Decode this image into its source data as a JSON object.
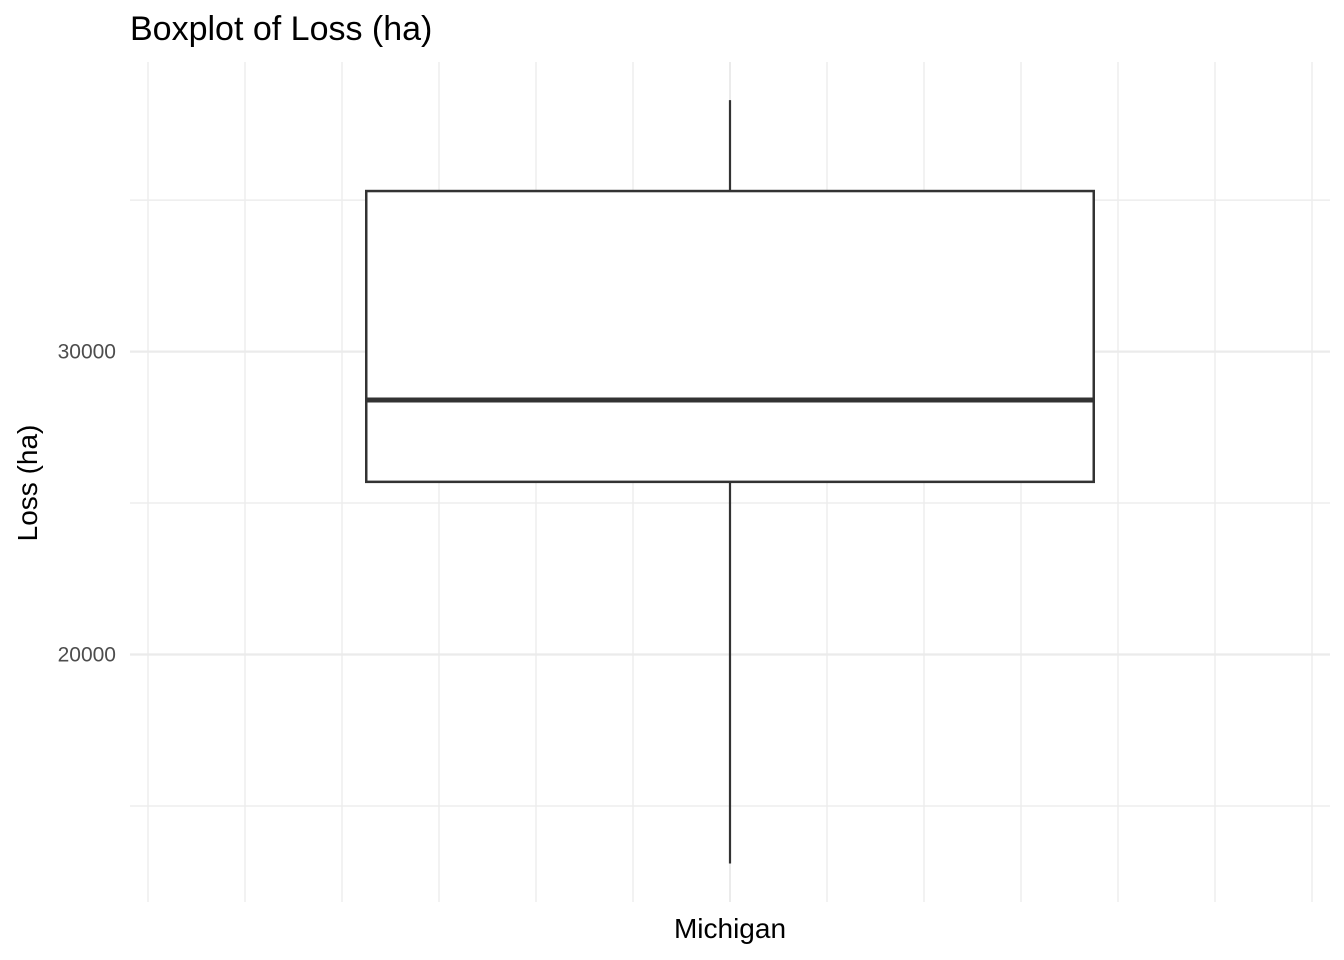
{
  "chart_data": {
    "type": "boxplot",
    "title": "Boxplot of Loss (ha)",
    "xlabel": "",
    "ylabel": "Loss (ha)",
    "categories": [
      "Michigan"
    ],
    "boxes": [
      {
        "category": "Michigan",
        "whisker_low": 13100,
        "q1": 25700,
        "median": 28400,
        "q3": 35300,
        "whisker_high": 38300
      }
    ],
    "y_ticks": [
      20000,
      30000
    ],
    "y_tick_labels": [
      "20000",
      "30000"
    ],
    "y_minor_ticks": [
      15000,
      25000,
      35000
    ],
    "ylim": [
      11830,
      39560
    ],
    "grid": true,
    "legend": "none",
    "colors": {
      "box_stroke": "#333333",
      "box_fill": "#ffffff",
      "grid_major": "#ebebeb",
      "grid_minor": "#f5f5f5"
    }
  }
}
